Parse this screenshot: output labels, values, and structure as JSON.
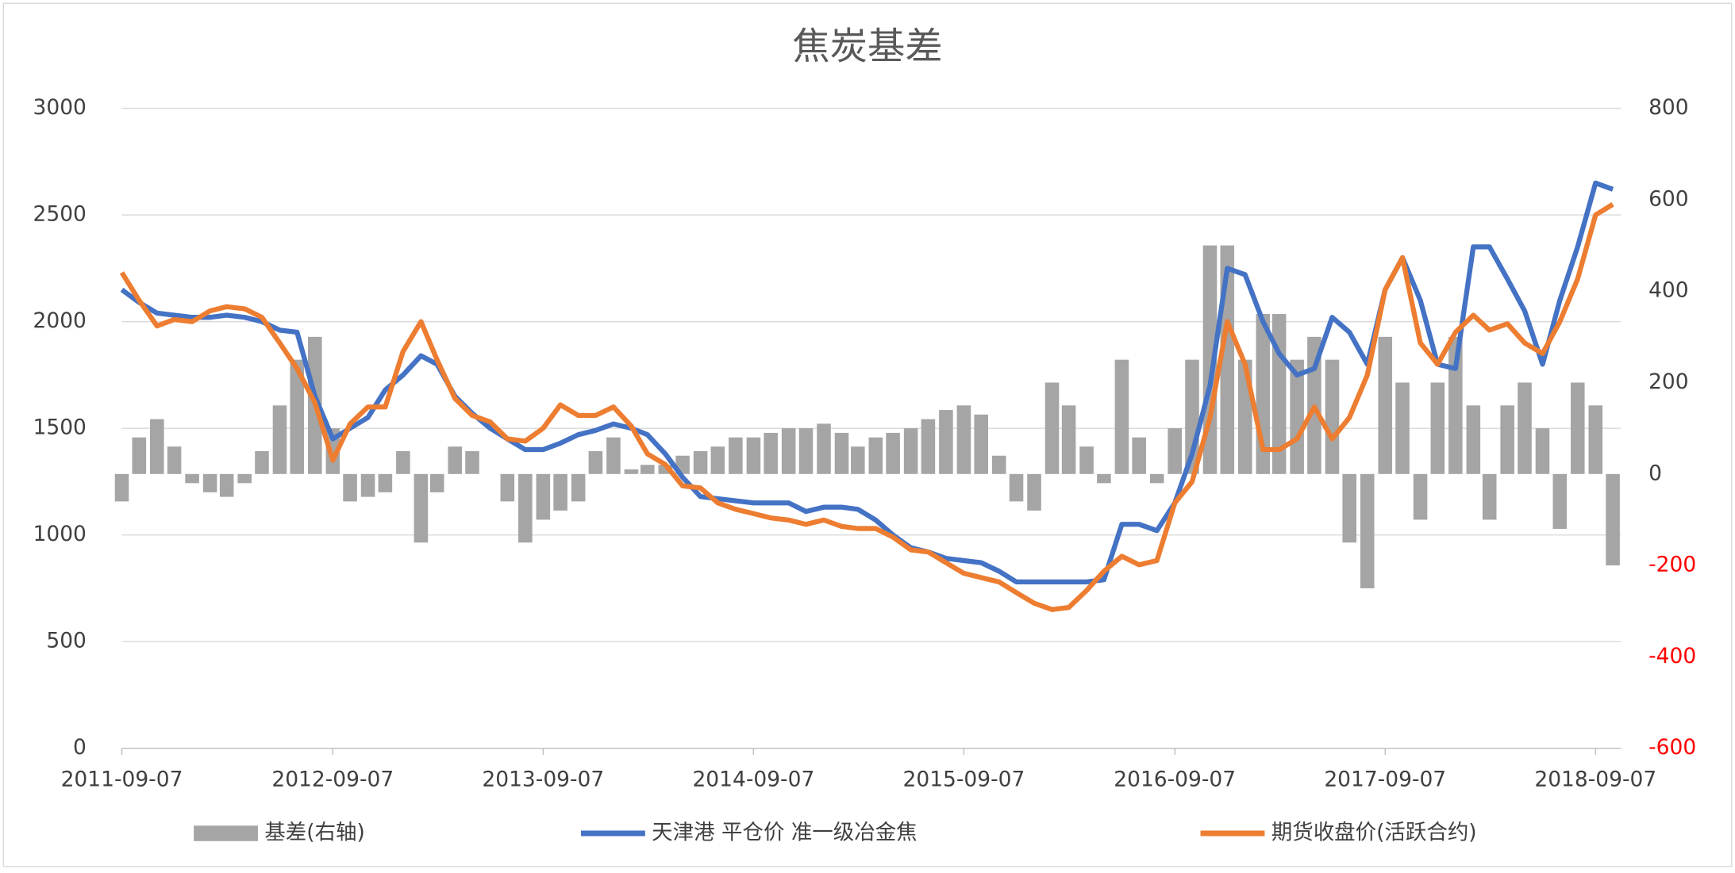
{
  "chart_data": {
    "type": "combo",
    "title": "焦炭基差",
    "x": [
      "2011-09-07",
      "2011-10-07",
      "2011-11-07",
      "2011-12-07",
      "2012-01-07",
      "2012-02-07",
      "2012-03-07",
      "2012-04-07",
      "2012-05-07",
      "2012-06-07",
      "2012-07-07",
      "2012-08-07",
      "2012-09-07",
      "2012-10-07",
      "2012-11-07",
      "2012-12-07",
      "2013-01-07",
      "2013-02-07",
      "2013-03-07",
      "2013-04-07",
      "2013-05-07",
      "2013-06-07",
      "2013-07-07",
      "2013-08-07",
      "2013-09-07",
      "2013-10-07",
      "2013-11-07",
      "2013-12-07",
      "2014-01-07",
      "2014-02-07",
      "2014-03-07",
      "2014-04-07",
      "2014-05-07",
      "2014-06-07",
      "2014-07-07",
      "2014-08-07",
      "2014-09-07",
      "2014-10-07",
      "2014-11-07",
      "2014-12-07",
      "2015-01-07",
      "2015-02-07",
      "2015-03-07",
      "2015-04-07",
      "2015-05-07",
      "2015-06-07",
      "2015-07-07",
      "2015-08-07",
      "2015-09-07",
      "2015-10-07",
      "2015-11-07",
      "2015-12-07",
      "2016-01-07",
      "2016-02-07",
      "2016-03-07",
      "2016-04-07",
      "2016-05-07",
      "2016-06-07",
      "2016-07-07",
      "2016-08-07",
      "2016-09-07",
      "2016-10-07",
      "2016-11-07",
      "2016-12-07",
      "2017-01-07",
      "2017-02-07",
      "2017-03-07",
      "2017-04-07",
      "2017-05-07",
      "2017-06-07",
      "2017-07-07",
      "2017-08-07",
      "2017-09-07",
      "2017-10-07",
      "2017-11-07",
      "2017-12-07",
      "2018-01-07",
      "2018-02-07",
      "2018-03-07",
      "2018-04-07",
      "2018-05-07",
      "2018-06-07",
      "2018-07-07",
      "2018-08-07",
      "2018-09-07",
      "2018-10-07"
    ],
    "series": [
      {
        "name": "基差(右轴)",
        "type": "bar",
        "axis": "y2",
        "color": "#a5a5a5",
        "values": [
          -60,
          80,
          120,
          60,
          -20,
          -40,
          -50,
          -20,
          50,
          150,
          250,
          300,
          100,
          -60,
          -50,
          -40,
          50,
          -150,
          -40,
          60,
          50,
          0,
          -60,
          -150,
          -100,
          -80,
          -60,
          50,
          80,
          10,
          20,
          20,
          40,
          50,
          60,
          80,
          80,
          90,
          100,
          100,
          110,
          90,
          60,
          80,
          90,
          100,
          120,
          140,
          150,
          130,
          40,
          -60,
          -80,
          200,
          150,
          60,
          -20,
          250,
          80,
          -20,
          100,
          250,
          500,
          500,
          250,
          350,
          350,
          250,
          300,
          250,
          -150,
          -250,
          300,
          200,
          -100,
          200,
          300,
          150,
          -100,
          150,
          200,
          100,
          -120,
          200,
          150,
          -200
        ]
      },
      {
        "name": "天津港 平仓价 准一级冶金焦",
        "type": "line",
        "color": "#4472c4",
        "values": [
          2150,
          2090,
          2040,
          2030,
          2020,
          2020,
          2030,
          2020,
          2000,
          1960,
          1950,
          1650,
          1450,
          1500,
          1550,
          1680,
          1750,
          1840,
          1800,
          1650,
          1570,
          1500,
          1450,
          1400,
          1400,
          1430,
          1470,
          1490,
          1520,
          1500,
          1470,
          1380,
          1270,
          1180,
          1170,
          1160,
          1150,
          1150,
          1150,
          1110,
          1130,
          1130,
          1120,
          1070,
          1000,
          940,
          920,
          890,
          880,
          870,
          830,
          780,
          780,
          780,
          780,
          780,
          790,
          1050,
          1050,
          1020,
          1150,
          1380,
          1700,
          2250,
          2220,
          2000,
          1850,
          1750,
          1780,
          2020,
          1950,
          1800,
          2150,
          2300,
          2100,
          1800,
          1780,
          2350,
          2350,
          2200,
          2050,
          1800,
          2100,
          2350,
          2650,
          2620
        ]
      },
      {
        "name": "期货收盘价(活跃合约)",
        "type": "line",
        "color": "#ed7d31",
        "values": [
          2230,
          2100,
          1980,
          2010,
          2000,
          2050,
          2070,
          2060,
          2020,
          1900,
          1780,
          1620,
          1350,
          1520,
          1600,
          1600,
          1860,
          2000,
          1820,
          1640,
          1560,
          1530,
          1450,
          1440,
          1500,
          1610,
          1560,
          1560,
          1600,
          1510,
          1380,
          1330,
          1230,
          1220,
          1150,
          1120,
          1100,
          1080,
          1070,
          1050,
          1070,
          1040,
          1030,
          1030,
          990,
          930,
          920,
          870,
          820,
          800,
          780,
          730,
          680,
          650,
          660,
          740,
          830,
          900,
          860,
          880,
          1150,
          1250,
          1550,
          2000,
          1800,
          1400,
          1400,
          1450,
          1600,
          1450,
          1550,
          1750,
          2150,
          2300,
          1900,
          1800,
          1950,
          2030,
          1960,
          1990,
          1900,
          1850,
          2000,
          2200,
          2500,
          2550
        ]
      }
    ],
    "xlim": [
      "2011-09-07",
      "2018-10-21"
    ],
    "xticks": [
      "2011-09-07",
      "2012-09-07",
      "2013-09-07",
      "2014-09-07",
      "2015-09-07",
      "2016-09-07",
      "2017-09-07",
      "2018-09-07"
    ],
    "ylim": [
      0,
      3000
    ],
    "yticks": [
      0,
      500,
      1000,
      1500,
      2000,
      2500,
      3000
    ],
    "y2lim": [
      -600,
      800
    ],
    "y2ticks": [
      -600,
      -400,
      -200,
      0,
      200,
      400,
      600,
      800
    ],
    "y2_negative_tick_color": "#ff0000",
    "grid": true,
    "legend": "bottom"
  }
}
